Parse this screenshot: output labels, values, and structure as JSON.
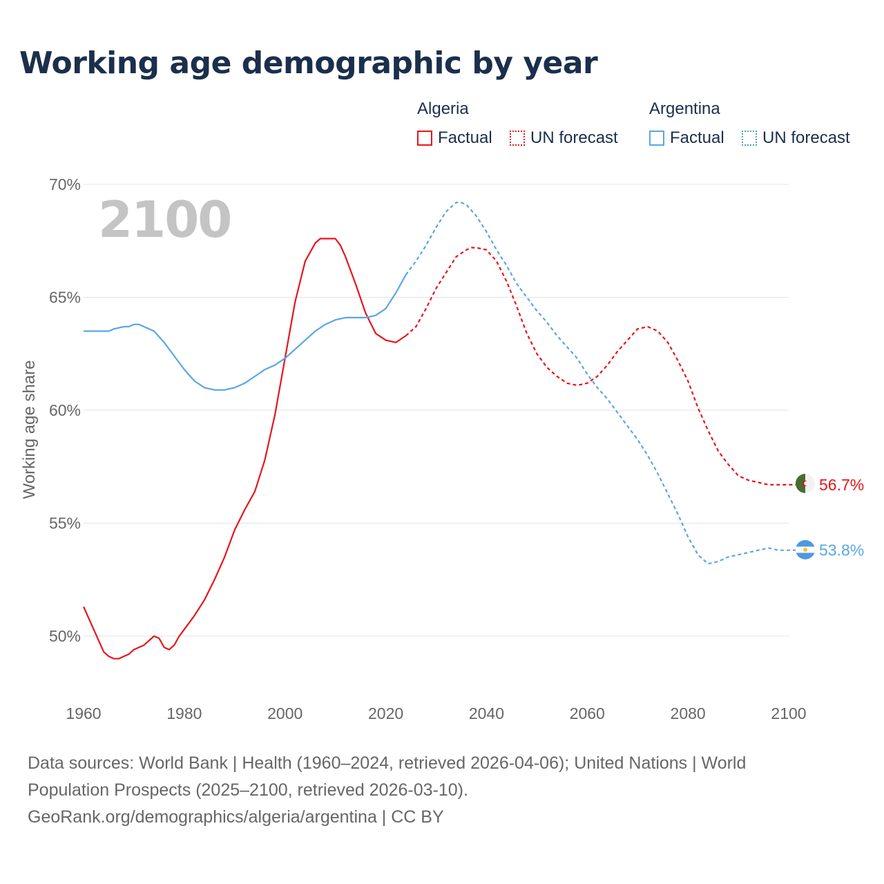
{
  "title": "Working age demographic by year",
  "year_watermark": "2100",
  "legend": {
    "groups": [
      {
        "country": "Algeria",
        "factual_label": "Factual",
        "forecast_label": "UN forecast",
        "color": "#e8141c"
      },
      {
        "country": "Argentina",
        "factual_label": "Factual",
        "forecast_label": "UN forecast",
        "color": "#5aa6e6"
      }
    ]
  },
  "chart_data": {
    "type": "line",
    "title": "Working age demographic by year",
    "xlabel": "",
    "ylabel": "Working age share",
    "xlim": [
      1960,
      2100
    ],
    "ylim": [
      47,
      70
    ],
    "x_ticks": [
      1960,
      1980,
      2000,
      2020,
      2040,
      2060,
      2080,
      2100
    ],
    "x_tick_labels": [
      "1960",
      "1980",
      "2000",
      "2020",
      "2040",
      "2060",
      "2080",
      "2100"
    ],
    "y_ticks": [
      50,
      55,
      60,
      65,
      70
    ],
    "y_tick_labels": [
      "50%",
      "55%",
      "60%",
      "65%",
      "70%"
    ],
    "factual_until": 2024,
    "series": [
      {
        "name": "Algeria",
        "color": "#e8141c",
        "end_label": "56.7%",
        "x": [
          1960,
          1962,
          1964,
          1965,
          1966,
          1967,
          1968,
          1969,
          1970,
          1972,
          1974,
          1975,
          1976,
          1977,
          1978,
          1979,
          1980,
          1982,
          1984,
          1986,
          1988,
          1990,
          1992,
          1994,
          1996,
          1998,
          2000,
          2002,
          2004,
          2006,
          2007,
          2008,
          2009,
          2010,
          2011,
          2012,
          2014,
          2016,
          2018,
          2020,
          2022,
          2024,
          2026,
          2028,
          2030,
          2032,
          2034,
          2036,
          2037,
          2038,
          2040,
          2042,
          2044,
          2046,
          2048,
          2050,
          2052,
          2054,
          2056,
          2058,
          2060,
          2062,
          2064,
          2066,
          2068,
          2070,
          2072,
          2074,
          2076,
          2078,
          2080,
          2082,
          2084,
          2086,
          2088,
          2090,
          2092,
          2094,
          2096,
          2098,
          2100
        ],
        "values": [
          51.3,
          50.3,
          49.3,
          49.1,
          49.0,
          49.0,
          49.1,
          49.2,
          49.4,
          49.6,
          50.0,
          49.9,
          49.5,
          49.4,
          49.6,
          50.0,
          50.3,
          50.9,
          51.6,
          52.5,
          53.5,
          54.7,
          55.6,
          56.4,
          57.8,
          59.8,
          62.3,
          64.8,
          66.6,
          67.4,
          67.6,
          67.6,
          67.6,
          67.6,
          67.3,
          66.8,
          65.6,
          64.3,
          63.4,
          63.1,
          63.0,
          63.3,
          63.7,
          64.5,
          65.4,
          66.1,
          66.8,
          67.1,
          67.2,
          67.2,
          67.1,
          66.6,
          65.7,
          64.6,
          63.4,
          62.5,
          61.9,
          61.5,
          61.2,
          61.1,
          61.2,
          61.5,
          62.0,
          62.6,
          63.1,
          63.6,
          63.7,
          63.5,
          63.0,
          62.2,
          61.3,
          60.1,
          59.1,
          58.2,
          57.6,
          57.1,
          56.9,
          56.8,
          56.7,
          56.7,
          56.7
        ]
      },
      {
        "name": "Argentina",
        "color": "#5aa6e6",
        "end_label": "53.8%",
        "x": [
          1960,
          1962,
          1964,
          1965,
          1966,
          1968,
          1969,
          1970,
          1971,
          1972,
          1974,
          1976,
          1978,
          1980,
          1982,
          1984,
          1986,
          1988,
          1990,
          1992,
          1994,
          1996,
          1998,
          2000,
          2002,
          2004,
          2006,
          2008,
          2010,
          2012,
          2014,
          2016,
          2018,
          2020,
          2022,
          2024,
          2026,
          2028,
          2030,
          2032,
          2034,
          2035,
          2036,
          2038,
          2040,
          2042,
          2044,
          2046,
          2048,
          2050,
          2052,
          2054,
          2056,
          2058,
          2060,
          2062,
          2064,
          2066,
          2068,
          2070,
          2072,
          2074,
          2076,
          2078,
          2080,
          2082,
          2084,
          2086,
          2088,
          2090,
          2092,
          2094,
          2096,
          2098,
          2100
        ],
        "values": [
          63.5,
          63.5,
          63.5,
          63.5,
          63.6,
          63.7,
          63.7,
          63.8,
          63.8,
          63.7,
          63.5,
          63.0,
          62.4,
          61.8,
          61.3,
          61.0,
          60.9,
          60.9,
          61.0,
          61.2,
          61.5,
          61.8,
          62.0,
          62.3,
          62.7,
          63.1,
          63.5,
          63.8,
          64.0,
          64.1,
          64.1,
          64.1,
          64.2,
          64.5,
          65.2,
          66.0,
          66.6,
          67.3,
          68.1,
          68.8,
          69.2,
          69.2,
          69.1,
          68.6,
          67.9,
          67.1,
          66.4,
          65.6,
          65.0,
          64.4,
          63.9,
          63.3,
          62.8,
          62.3,
          61.6,
          61.0,
          60.5,
          59.9,
          59.3,
          58.7,
          58.0,
          57.2,
          56.3,
          55.4,
          54.4,
          53.6,
          53.2,
          53.3,
          53.5,
          53.6,
          53.7,
          53.8,
          53.9,
          53.8,
          53.8
        ]
      }
    ]
  },
  "footer": {
    "sources": "Data sources: World Bank | Health (1960–2024, retrieved 2026-04-06); United Nations | World Population Prospects (2025–2100, retrieved 2026-03-10).",
    "credit": "GeoRank.org/demographics/algeria/argentina | CC BY"
  }
}
